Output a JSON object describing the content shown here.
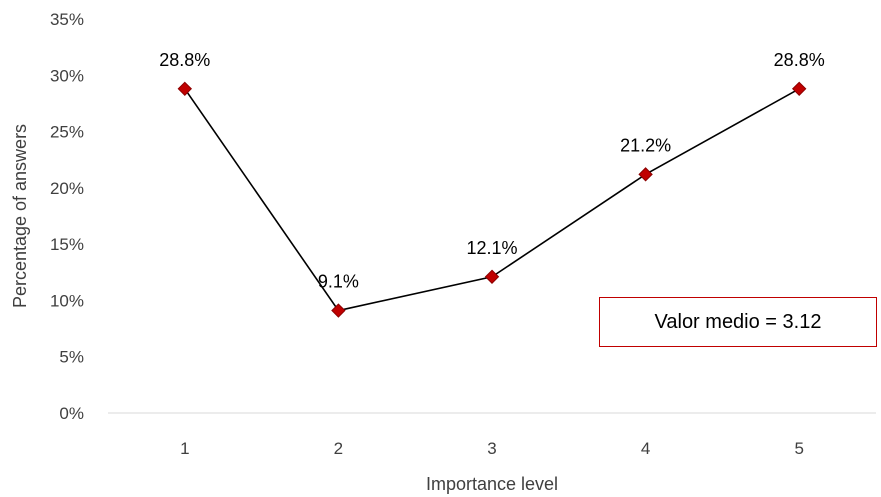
{
  "chart_data": {
    "type": "line",
    "title": "",
    "xlabel": "Importance level",
    "ylabel": "Percentage of answers",
    "categories": [
      "1",
      "2",
      "3",
      "4",
      "5"
    ],
    "series": [
      {
        "values": [
          28.8,
          9.1,
          12.1,
          21.2,
          28.8
        ]
      }
    ],
    "data_labels": [
      "28.8%",
      "9.1%",
      "12.1%",
      "21.2%",
      "28.8%"
    ],
    "y_ticks": [
      "0%",
      "5%",
      "10%",
      "15%",
      "20%",
      "25%",
      "30%",
      "35%"
    ],
    "ylim": [
      0,
      35
    ],
    "grid": false,
    "legend": "none",
    "annotation": "Valor medio = 3.12",
    "colors": {
      "line": "#000000",
      "marker_fill": "#c00000",
      "marker_stroke": "#8b0000",
      "axis": "#d9d9d9",
      "annotation_border": "#c00000"
    }
  }
}
